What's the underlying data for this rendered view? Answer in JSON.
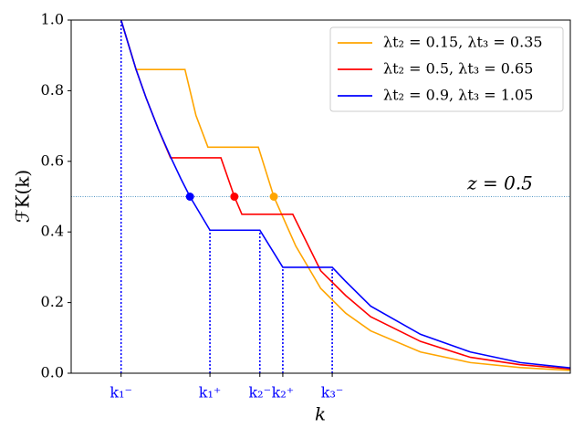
{
  "chart_data": {
    "type": "line",
    "xlabel": "k",
    "ylabel": "ℱK(k)",
    "xlim": [
      0,
      10
    ],
    "ylim": [
      0,
      1
    ],
    "yticks": [
      {
        "value": 0,
        "label": "0.0"
      },
      0.2,
      0.4,
      0.6,
      0.8,
      {
        "value": 1,
        "label": "1.0"
      }
    ],
    "xticks": [
      {
        "value": 1.0,
        "label": "k₁⁻"
      },
      {
        "value": 2.78,
        "label": "k₁⁺"
      },
      {
        "value": 3.78,
        "label": "k₂⁻"
      },
      {
        "value": 4.24,
        "label": "k₂⁺"
      },
      {
        "value": 5.23,
        "label": "k₃⁻"
      }
    ],
    "xtick_color": "#0000ff",
    "hline": 0.5,
    "hline_color": "#1f77b4",
    "annotation": "z = 0.5",
    "legend": "upper right",
    "series": [
      {
        "name": "λt₂ = 0.15,  λt₃ = 0.35",
        "color": "#ffa500",
        "x": [
          1.0,
          1.15,
          1.3,
          2.28,
          2.5,
          2.74,
          3.75,
          4.06,
          4.5,
          5,
          5.5,
          6,
          7,
          8,
          9,
          10
        ],
        "values": [
          1.0,
          0.93,
          0.86,
          0.86,
          0.73,
          0.64,
          0.64,
          0.5,
          0.36,
          0.24,
          0.17,
          0.12,
          0.06,
          0.03,
          0.016,
          0.008
        ],
        "marker": {
          "x": 4.06,
          "y": 0.5
        }
      },
      {
        "name": "λt₂ = 0.5,  λt₃ = 0.65",
        "color": "#ff0000",
        "x": [
          1.0,
          1.15,
          1.3,
          1.5,
          1.75,
          1.99,
          3.0,
          3.27,
          3.42,
          4.44,
          5,
          5.5,
          6,
          7,
          8,
          9,
          10
        ],
        "values": [
          1.0,
          0.93,
          0.86,
          0.78,
          0.69,
          0.61,
          0.61,
          0.5,
          0.45,
          0.45,
          0.29,
          0.22,
          0.16,
          0.09,
          0.045,
          0.024,
          0.012
        ],
        "marker": {
          "x": 3.27,
          "y": 0.5
        }
      },
      {
        "name": "λt₂ = 0.9,  λt₃ = 1.05",
        "color": "#0000ff",
        "x": [
          1.0,
          1.15,
          1.3,
          1.5,
          1.75,
          2.0,
          2.2,
          2.38,
          2.78,
          3.78,
          4.24,
          5.23,
          5.5,
          6,
          7,
          8,
          9,
          10
        ],
        "values": [
          1.0,
          0.93,
          0.86,
          0.78,
          0.69,
          0.61,
          0.55,
          0.5,
          0.405,
          0.405,
          0.3,
          0.3,
          0.26,
          0.19,
          0.11,
          0.06,
          0.03,
          0.015
        ],
        "marker": {
          "x": 2.38,
          "y": 0.5
        }
      }
    ]
  }
}
